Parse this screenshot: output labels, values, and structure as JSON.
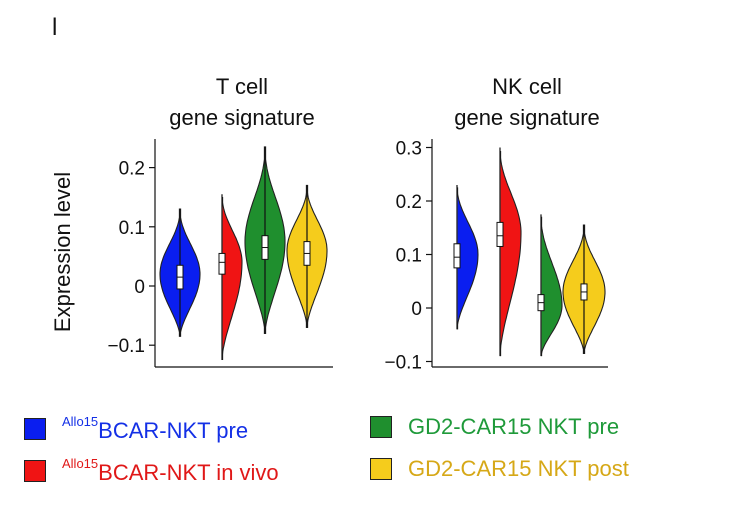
{
  "panel_letter": "l",
  "chart_data": [
    {
      "type": "violin",
      "title_line1": "T cell",
      "title_line2": "gene signature",
      "ylabel": "Expression level",
      "ylim": [
        -0.13,
        0.25
      ],
      "yticks": [
        -0.1,
        0,
        0.1,
        0.2
      ],
      "ytick_labels": [
        "−0.1",
        "0",
        "0.1",
        "0.2"
      ],
      "series": [
        {
          "name": "Allo15BCAR-NKT pre",
          "color": "#0a1ef0",
          "min": -0.085,
          "q1": -0.005,
          "median": 0.015,
          "q3": 0.035,
          "max": 0.13,
          "mode": 0.02
        },
        {
          "name": "Allo15BCAR-NKT in vivo",
          "color": "#f01414",
          "min": -0.125,
          "q1": 0.02,
          "median": 0.04,
          "q3": 0.055,
          "max": 0.155,
          "mode": 0.04
        },
        {
          "name": "GD2-CAR15 NKT pre",
          "color": "#1f8f2e",
          "min": -0.08,
          "q1": 0.045,
          "median": 0.065,
          "q3": 0.085,
          "max": 0.235,
          "mode": 0.075
        },
        {
          "name": "GD2-CAR15 NKT post",
          "color": "#f5cc1c",
          "min": -0.07,
          "q1": 0.035,
          "median": 0.055,
          "q3": 0.075,
          "max": 0.17,
          "mode": 0.06
        }
      ]
    },
    {
      "type": "violin",
      "title_line1": "NK cell",
      "title_line2": "gene signature",
      "ylabel": "",
      "ylim": [
        -0.11,
        0.31
      ],
      "yticks": [
        -0.1,
        0,
        0.1,
        0.2,
        0.3
      ],
      "ytick_labels": [
        "−0.1",
        "0",
        "0.1",
        "0.2",
        "0.3"
      ],
      "series": [
        {
          "name": "Allo15BCAR-NKT pre",
          "color": "#0a1ef0",
          "min": -0.04,
          "q1": 0.075,
          "median": 0.095,
          "q3": 0.12,
          "max": 0.23,
          "mode": 0.1
        },
        {
          "name": "Allo15BCAR-NKT in vivo",
          "color": "#f01414",
          "min": -0.09,
          "q1": 0.115,
          "median": 0.135,
          "q3": 0.16,
          "max": 0.3,
          "mode": 0.14
        },
        {
          "name": "GD2-CAR15 NKT pre",
          "color": "#1f8f2e",
          "min": -0.09,
          "q1": -0.005,
          "median": 0.01,
          "q3": 0.025,
          "max": 0.175,
          "mode": 0.005
        },
        {
          "name": "GD2-CAR15 NKT post",
          "color": "#f5cc1c",
          "min": -0.085,
          "q1": 0.015,
          "median": 0.03,
          "q3": 0.045,
          "max": 0.155,
          "mode": 0.03
        }
      ]
    }
  ],
  "legend": [
    {
      "sup": "Allo15",
      "label": "BCAR-NKT pre",
      "color": "#0a1ef0",
      "text_color": "#1430e6"
    },
    {
      "sup": "Allo15",
      "label": "BCAR-NKT in vivo",
      "color": "#f01414",
      "text_color": "#e01818"
    },
    {
      "sup": "",
      "label": "GD2-CAR15 NKT pre",
      "color": "#1f8f2e",
      "text_color": "#1f9a3a"
    },
    {
      "sup": "",
      "label": "GD2-CAR15 NKT post",
      "color": "#f5cc1c",
      "text_color": "#d6a817"
    }
  ]
}
